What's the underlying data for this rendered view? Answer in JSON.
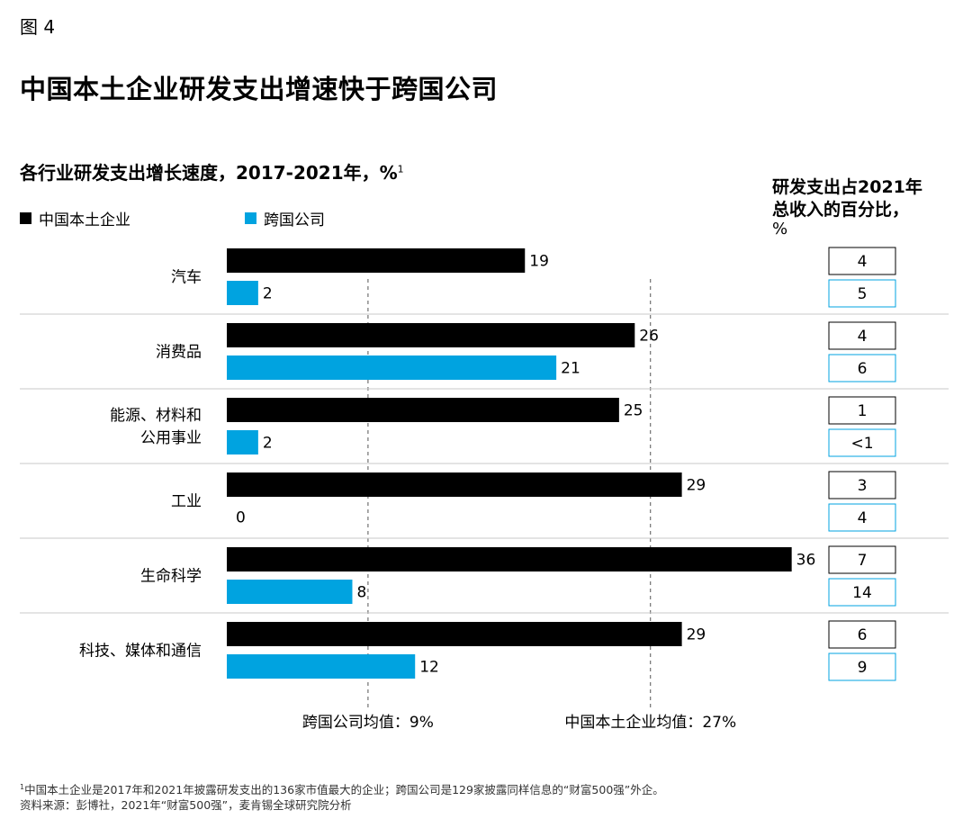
{
  "header": {
    "figure_label": "图 4",
    "title": "中国本土企业研发支出增速快于跨国公司"
  },
  "subtitle": {
    "text": "各行业研发支出增长速度，2017-2021年，%",
    "footnote_mark": "1"
  },
  "legend": {
    "items": [
      {
        "label": "中国本土企业",
        "color": "#000000"
      },
      {
        "label": "跨国公司",
        "color": "#00A3E0"
      }
    ]
  },
  "right_column": {
    "header_line1": "研发支出占2021年",
    "header_line2": "总收入的百分比，",
    "unit": "%"
  },
  "chart_data": {
    "type": "bar",
    "orientation": "horizontal",
    "categories": [
      [
        "汽车"
      ],
      [
        "消费品"
      ],
      [
        "能源、材料和",
        "公用事业"
      ],
      [
        "工业"
      ],
      [
        "生命科学"
      ],
      [
        "科技、媒体和通信"
      ]
    ],
    "series": [
      {
        "name": "中国本土企业",
        "color": "#000000",
        "values": [
          19,
          26,
          25,
          29,
          36,
          29
        ]
      },
      {
        "name": "跨国公司",
        "color": "#00A3E0",
        "values": [
          2,
          21,
          2,
          0,
          8,
          12
        ]
      }
    ],
    "xlim": [
      0,
      46
    ],
    "reference_lines": [
      {
        "label": "跨国公司均值：9%",
        "value": 9
      },
      {
        "label": "中国本土企业均值：27%",
        "value": 27
      }
    ],
    "rd_share_of_revenue_2021": {
      "中国本土企业": [
        "4",
        "4",
        "1",
        "3",
        "7",
        "6"
      ],
      "跨国公司": [
        "5",
        "6",
        "<1",
        "4",
        "14",
        "9"
      ]
    }
  },
  "footnote": {
    "mark": "1",
    "line1": "中国本土企业是2017年和2021年披露研发支出的136家市值最大的企业；跨国公司是129家披露同样信息的“财富500强”外企。",
    "line2": "资料来源：彭博社，2021年“财富500强”，麦肯锡全球研究院分析"
  }
}
